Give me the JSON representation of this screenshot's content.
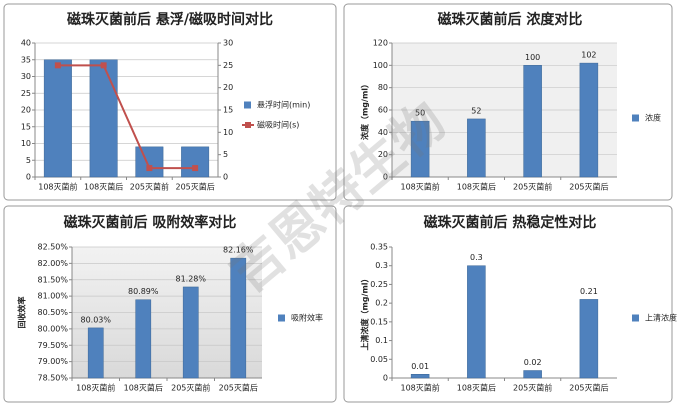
{
  "watermark": "吉恩特生物",
  "chart_data": [
    {
      "type": "bar",
      "title": "磁珠灭菌前后 悬浮/磁吸时间对比",
      "categories": [
        "108灭菌前",
        "108灭菌后",
        "205灭菌前",
        "205灭菌后"
      ],
      "series": [
        {
          "name": "悬浮时间(min)",
          "color": "#4f81bd",
          "values": [
            35,
            35,
            9,
            9
          ]
        },
        {
          "name": "磁吸时间(s)",
          "color": "#c0504d",
          "type": "line",
          "axis": "y2",
          "values": [
            25,
            25,
            2,
            2
          ]
        }
      ],
      "ylim": [
        0,
        40
      ],
      "yticks": [
        0,
        5,
        10,
        15,
        20,
        25,
        30,
        35,
        40
      ],
      "y2lim": [
        0,
        30
      ],
      "y2ticks": [
        0,
        5,
        10,
        15,
        20,
        25,
        30
      ],
      "grid": true
    },
    {
      "type": "bar",
      "title": "磁珠灭菌前后 浓度对比",
      "y_label": "浓度（mg/ml）",
      "categories": [
        "108灭菌前",
        "108灭菌后",
        "205灭菌前",
        "205灭菌后"
      ],
      "series": [
        {
          "name": "浓度",
          "color": "#4f81bd",
          "values": [
            50,
            52,
            100,
            102
          ]
        }
      ],
      "ylim": [
        0,
        120
      ],
      "yticks": [
        0,
        20,
        40,
        60,
        80,
        100,
        120
      ],
      "grid": true,
      "data_labels": true
    },
    {
      "type": "bar",
      "title": "磁珠灭菌前后 吸附效率对比",
      "y_label": "回收效率",
      "categories": [
        "108灭菌前",
        "108灭菌后",
        "205灭菌前",
        "205灭菌后"
      ],
      "series": [
        {
          "name": "吸附效率",
          "color": "#4f81bd",
          "values": [
            80.03,
            80.89,
            81.28,
            82.16
          ],
          "value_labels": [
            "80.03%",
            "80.89%",
            "81.28%",
            "82.16%"
          ]
        }
      ],
      "ylim": [
        78.5,
        82.5
      ],
      "yticks": [
        {
          "value": 78.5,
          "label": "78.50%"
        },
        {
          "value": 79,
          "label": "79.00%"
        },
        {
          "value": 79.5,
          "label": "79.50%"
        },
        {
          "value": 80,
          "label": "80.00%"
        },
        {
          "value": 80.5,
          "label": "80.50%"
        },
        {
          "value": 81,
          "label": "81.00%"
        },
        {
          "value": 81.5,
          "label": "81.50%"
        },
        {
          "value": 82,
          "label": "82.00%"
        },
        {
          "value": 82.5,
          "label": "82.50%"
        }
      ],
      "grid": true,
      "data_labels": true
    },
    {
      "type": "bar",
      "title": "磁珠灭菌前后 热稳定性对比",
      "y_label": "上清浓度（mg/ml）",
      "categories": [
        "108灭菌前",
        "108灭菌后",
        "205灭菌前",
        "205灭菌后"
      ],
      "series": [
        {
          "name": "上清浓度",
          "color": "#4f81bd",
          "values": [
            0.01,
            0.3,
            0.02,
            0.21
          ]
        }
      ],
      "ylim": [
        0,
        0.35
      ],
      "yticks": [
        0,
        0.05,
        0.1,
        0.15,
        0.2,
        0.25,
        0.3,
        0.35
      ],
      "grid": false,
      "data_labels": true
    }
  ]
}
